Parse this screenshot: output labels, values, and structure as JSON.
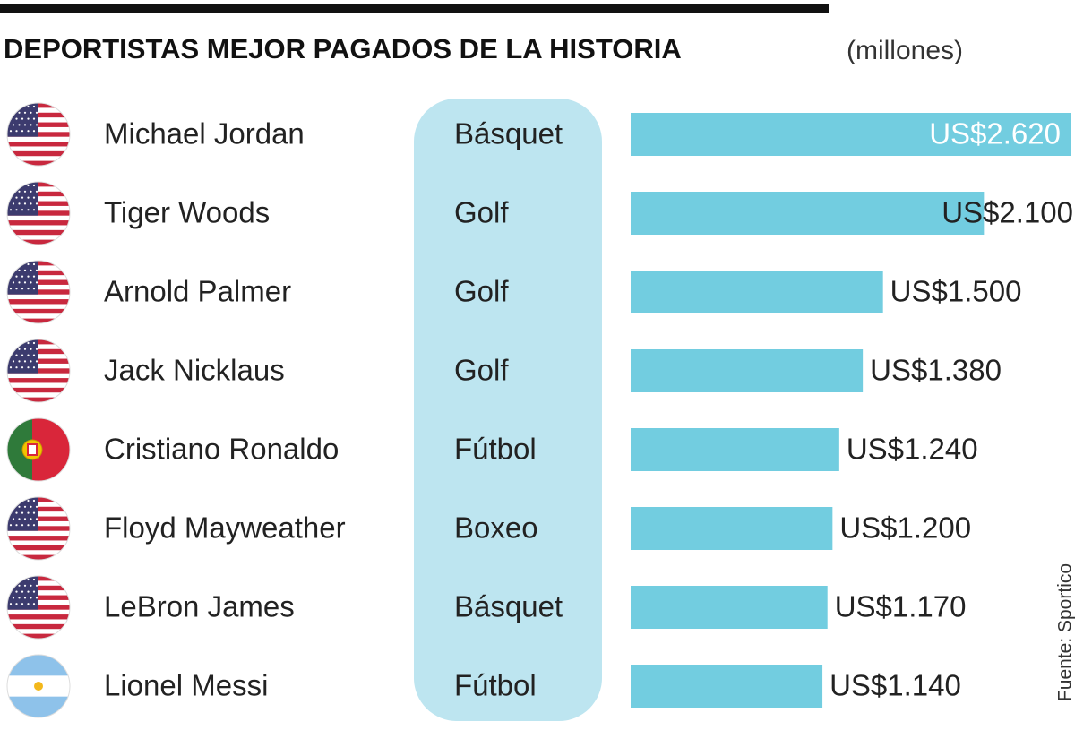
{
  "chart_data": {
    "type": "bar",
    "orientation": "horizontal",
    "title": "DEPORTISTAS MEJOR PAGADOS DE LA HISTORIA",
    "subtitle": "(millones)",
    "categories": [
      "Michael Jordan",
      "Tiger Woods",
      "Arnold Palmer",
      "Jack Nicklaus",
      "Cristiano Ronaldo",
      "Floyd Mayweather",
      "LeBron James",
      "Lionel Messi"
    ],
    "sports": [
      "Básquet",
      "Golf",
      "Golf",
      "Golf",
      "Fútbol",
      "Boxeo",
      "Básquet",
      "Fútbol"
    ],
    "values": [
      2620,
      2100,
      1500,
      1380,
      1240,
      1200,
      1170,
      1140
    ],
    "value_labels": [
      "US$2.620",
      "US$2.100",
      "US$1.500",
      "US$1.380",
      "US$1.240",
      "US$1.200",
      "US$1.170",
      "US$1.140"
    ],
    "color": "#72cde0",
    "source": "Fuente: Sportico"
  }
}
